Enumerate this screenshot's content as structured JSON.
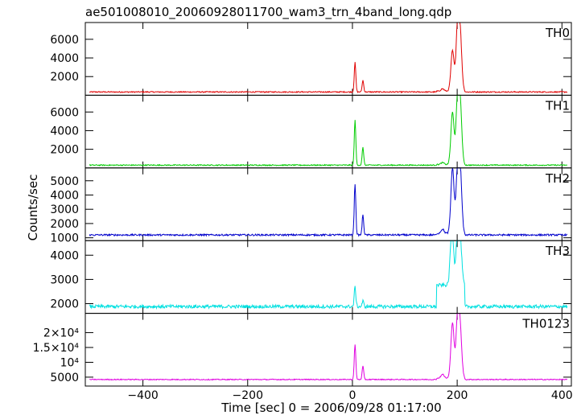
{
  "chart_data": {
    "type": "line",
    "title": "ae501008010_20060928011700_wam3_trn_4band_long.qdp",
    "xlabel": "Time [sec] 0 = 2006/09/28 01:17:00",
    "ylabel": "Counts/sec",
    "xlim": [
      -510,
      418
    ],
    "x_ticks": [
      -400,
      -200,
      0,
      200,
      400
    ],
    "x_tick_labels": [
      "−400",
      "−200",
      "0",
      "200",
      "400"
    ],
    "grid": false,
    "panels": [
      {
        "name": "TH0",
        "color": "#e00000",
        "ylim": [
          0,
          7800
        ],
        "y_ticks": [
          2000,
          4000,
          6000
        ],
        "y_tick_labels": [
          "2000",
          "4000",
          "6000"
        ],
        "baseline": 350,
        "noise": 60,
        "peaks": [
          [
            5,
            3500
          ],
          [
            20,
            1600
          ],
          [
            172,
            600
          ],
          [
            191,
            4700
          ],
          [
            201,
            7800
          ],
          [
            206,
            5600
          ]
        ]
      },
      {
        "name": "TH1",
        "color": "#00cc00",
        "ylim": [
          0,
          7800
        ],
        "y_ticks": [
          2000,
          4000,
          6000
        ],
        "y_tick_labels": [
          "2000",
          "4000",
          "6000"
        ],
        "baseline": 300,
        "noise": 60,
        "peaks": [
          [
            5,
            5100
          ],
          [
            20,
            2200
          ],
          [
            172,
            500
          ],
          [
            191,
            5900
          ],
          [
            201,
            7700
          ],
          [
            206,
            6000
          ]
        ]
      },
      {
        "name": "TH2",
        "color": "#0000cc",
        "ylim": [
          800,
          5900
        ],
        "y_ticks": [
          1000,
          2000,
          3000,
          4000,
          5000
        ],
        "y_tick_labels": [
          "1000",
          "2000",
          "3000",
          "4000",
          "5000"
        ],
        "baseline": 1200,
        "noise": 60,
        "peaks": [
          [
            5,
            4800
          ],
          [
            20,
            2600
          ],
          [
            172,
            1500
          ],
          [
            191,
            5800
          ],
          [
            201,
            5900
          ],
          [
            206,
            5100
          ]
        ]
      },
      {
        "name": "TH3",
        "color": "#00e0e0",
        "ylim": [
          1600,
          4600
        ],
        "y_ticks": [
          2000,
          3000,
          4000
        ],
        "y_tick_labels": [
          "2000",
          "3000",
          "4000"
        ],
        "baseline": 1880,
        "noise": 70,
        "peaks": [
          [
            5,
            2700
          ],
          [
            20,
            2100
          ],
          [
            190,
            4400
          ],
          [
            201,
            4300
          ],
          [
            206,
            3500
          ]
        ]
      },
      {
        "name": "TH0123",
        "color": "#e000e0",
        "ylim": [
          2000,
          26500
        ],
        "y_ticks": [
          5000,
          10000,
          15000,
          20000
        ],
        "y_tick_labels": [
          "5000",
          "10⁴",
          "1.5×10⁴",
          "2×10⁴"
        ],
        "baseline": 4200,
        "noise": 160,
        "peaks": [
          [
            5,
            16000
          ],
          [
            20,
            8700
          ],
          [
            172,
            5500
          ],
          [
            191,
            23000
          ],
          [
            201,
            26000
          ],
          [
            206,
            18000
          ]
        ]
      }
    ]
  }
}
